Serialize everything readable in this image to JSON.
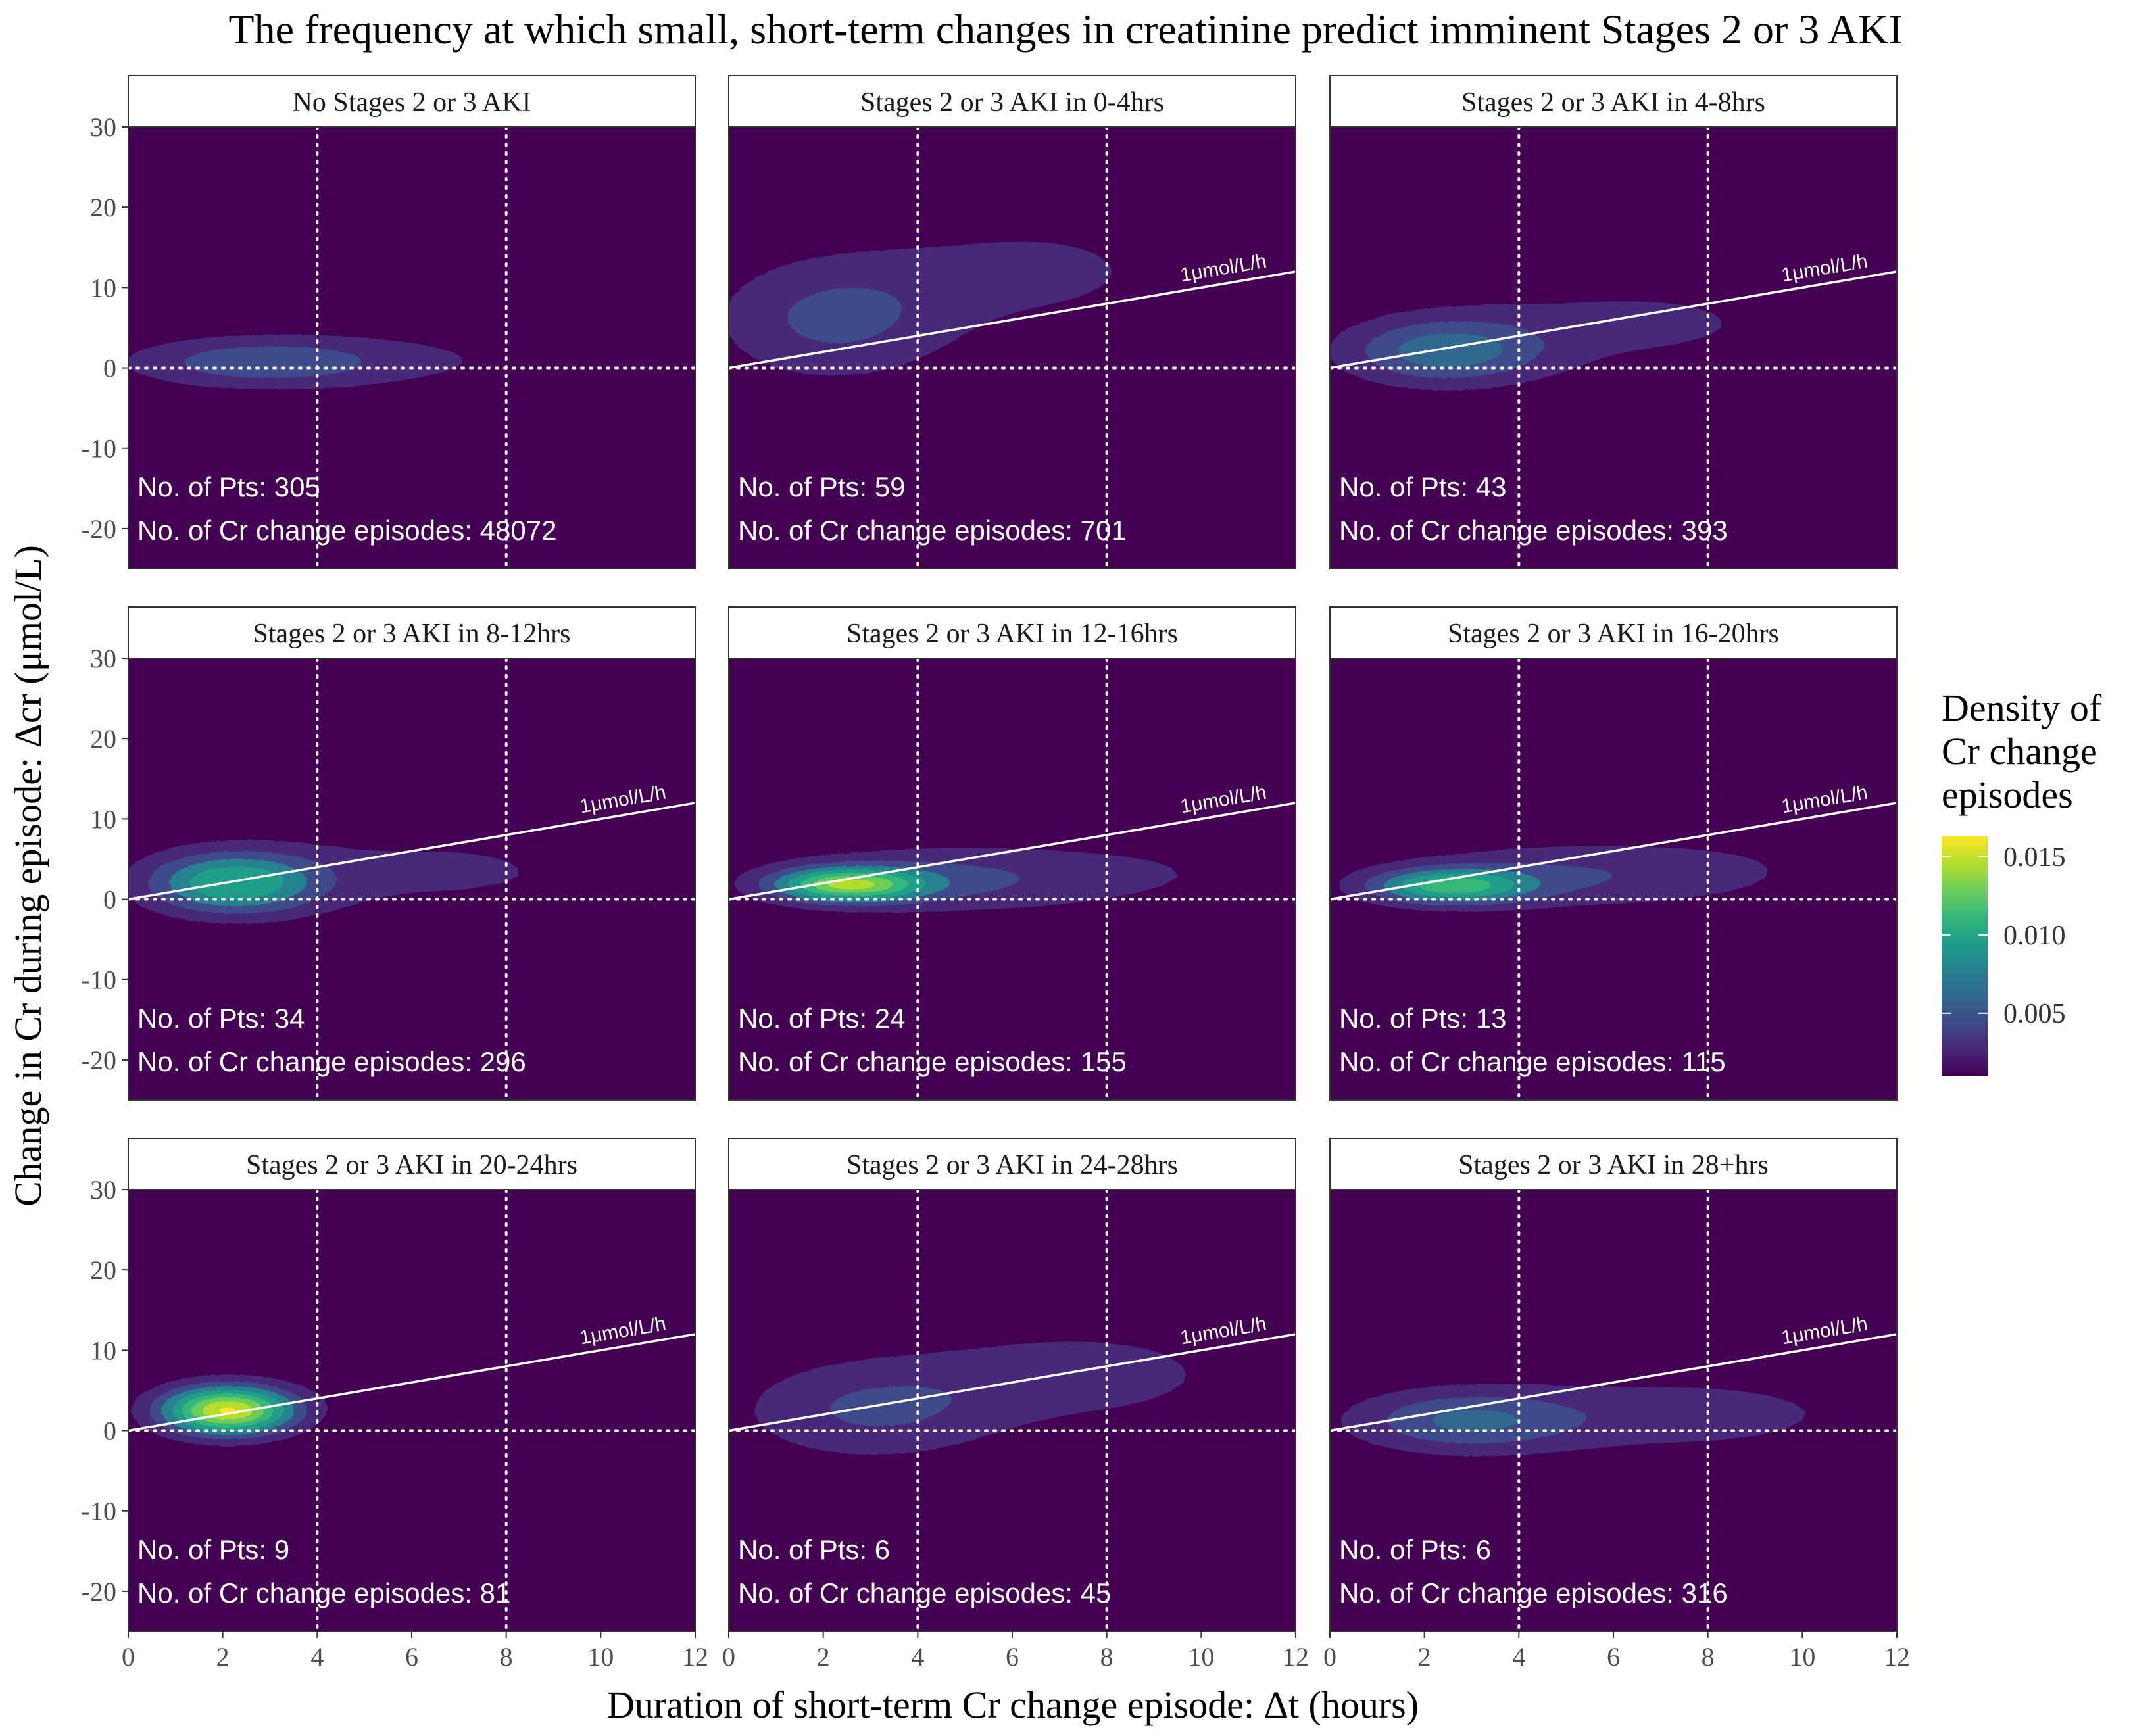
{
  "title": "The frequency at which small, short-term changes in creatinine predict imminent Stages 2 or 3 AKI",
  "colors": {
    "panel_bg": "#440154",
    "viridis": [
      "#440154",
      "#482878",
      "#3E4A89",
      "#31688E",
      "#26828E",
      "#1F9E89",
      "#35B779",
      "#6DCD59",
      "#B4DE2C",
      "#FDE725"
    ],
    "line": "#ffffff"
  },
  "chart_data": {
    "type": "contour",
    "xlabel": "Duration of short-term Cr change episode: Δt (hours)",
    "ylabel": "Change in Cr during episode: Δcr (μmol/L)",
    "xlim": [
      0,
      12
    ],
    "ylim": [
      -25,
      30
    ],
    "x_ticks": [
      0,
      2,
      4,
      6,
      8,
      10,
      12
    ],
    "y_ticks": [
      -20,
      -10,
      0,
      10,
      20,
      30
    ],
    "reference_vlines": [
      4,
      8
    ],
    "reference_hline": 0,
    "slope_line_label": "1μmol/L/h",
    "legend": {
      "title": [
        "Density of",
        "Cr change",
        "episodes"
      ],
      "ticks": [
        0.005,
        0.01,
        0.015
      ],
      "tick_labels": [
        "0.005",
        "0.010",
        "0.015"
      ],
      "range": [
        0.001,
        0.0163
      ]
    },
    "panels": [
      {
        "title": "No Stages 2 or 3 AKI",
        "pts_label": "No. of Pts: 305",
        "episodes_label": "No. of Cr change episodes: 48072",
        "slope_line": false,
        "peak_density": 0.0058,
        "blobs": [
          {
            "mx": 2.8,
            "my": 0.7,
            "sx": 2.0,
            "sy": 2.3,
            "w": 1.0
          },
          {
            "mx": 7.5,
            "my": 1.2,
            "sx": 3.0,
            "sy": 3.6,
            "w": 0.28
          }
        ]
      },
      {
        "title": "Stages 2 or 3 AKI in 0-4hrs",
        "pts_label": "No. of Pts: 59",
        "episodes_label": "No. of Cr change episodes: 701",
        "slope_line": true,
        "peak_density": 0.0048,
        "blobs": [
          {
            "mx": 2.2,
            "my": 6.0,
            "sx": 1.8,
            "sy": 5.5,
            "w": 1.0
          },
          {
            "mx": 6.5,
            "my": 12.0,
            "sx": 2.5,
            "sy": 5.5,
            "w": 0.55
          }
        ]
      },
      {
        "title": "Stages 2 or 3 AKI in 4-8hrs",
        "pts_label": "No. of Pts: 43",
        "episodes_label": "No. of Cr change episodes: 393",
        "slope_line": true,
        "peak_density": 0.0076,
        "blobs": [
          {
            "mx": 2.4,
            "my": 2.0,
            "sx": 1.5,
            "sy": 3.0,
            "w": 1.0
          },
          {
            "mx": 6.5,
            "my": 5.5,
            "sx": 3.0,
            "sy": 4.5,
            "w": 0.35
          }
        ]
      },
      {
        "title": "Stages 2 or 3 AKI in 8-12hrs",
        "pts_label": "No. of Pts: 34",
        "episodes_label": "No. of Cr change episodes: 296",
        "slope_line": true,
        "peak_density": 0.0104,
        "blobs": [
          {
            "mx": 2.2,
            "my": 2.0,
            "sx": 1.3,
            "sy": 2.8,
            "w": 1.0
          },
          {
            "mx": 6.5,
            "my": 3.5,
            "sx": 3.0,
            "sy": 4.0,
            "w": 0.25
          }
        ]
      },
      {
        "title": "Stages 2 or 3 AKI in 12-16hrs",
        "pts_label": "No. of Pts: 24",
        "episodes_label": "No. of Cr change episodes: 155",
        "slope_line": true,
        "peak_density": 0.0152,
        "blobs": [
          {
            "mx": 2.5,
            "my": 1.8,
            "sx": 1.1,
            "sy": 1.5,
            "w": 1.0
          },
          {
            "mx": 4.5,
            "my": 2.5,
            "sx": 2.5,
            "sy": 3.0,
            "w": 0.35
          },
          {
            "mx": 9.5,
            "my": 3.5,
            "sx": 2.5,
            "sy": 4.0,
            "w": 0.12
          }
        ]
      },
      {
        "title": "Stages 2 or 3 AKI in 16-20hrs",
        "pts_label": "No. of Pts: 13",
        "episodes_label": "No. of Cr change episodes: 115",
        "slope_line": true,
        "peak_density": 0.0118,
        "blobs": [
          {
            "mx": 2.5,
            "my": 1.6,
            "sx": 1.2,
            "sy": 1.6,
            "w": 1.0
          },
          {
            "mx": 5.0,
            "my": 3.0,
            "sx": 2.5,
            "sy": 3.0,
            "w": 0.4
          },
          {
            "mx": 9.0,
            "my": 4.0,
            "sx": 2.0,
            "sy": 4.0,
            "w": 0.12
          }
        ]
      },
      {
        "title": "Stages 2 or 3 AKI in 20-24hrs",
        "pts_label": "No. of Pts: 9",
        "episodes_label": "No. of Cr change episodes: 81",
        "slope_line": true,
        "peak_density": 0.0163,
        "blobs": [
          {
            "mx": 2.1,
            "my": 2.5,
            "sx": 1.0,
            "sy": 2.2,
            "w": 1.0
          },
          {
            "mx": 8.0,
            "my": 5.0,
            "sx": 3.0,
            "sy": 3.0,
            "w": 0.06
          }
        ]
      },
      {
        "title": "Stages 2 or 3 AKI in 24-28hrs",
        "pts_label": "No. of Pts: 6",
        "episodes_label": "No. of Cr change episodes: 45",
        "slope_line": true,
        "peak_density": 0.0046,
        "blobs": [
          {
            "mx": 3.0,
            "my": 2.5,
            "sx": 2.0,
            "sy": 4.5,
            "w": 1.0
          },
          {
            "mx": 7.5,
            "my": 7.0,
            "sx": 2.5,
            "sy": 4.5,
            "w": 0.7
          }
        ]
      },
      {
        "title": "Stages 2 or 3 AKI in 28+hrs",
        "pts_label": "No. of Pts: 6",
        "episodes_label": "No. of Cr change episodes: 316",
        "slope_line": true,
        "peak_density": 0.0067,
        "blobs": [
          {
            "mx": 2.8,
            "my": 1.2,
            "sx": 1.7,
            "sy": 2.8,
            "w": 1.0
          },
          {
            "mx": 7.5,
            "my": 2.0,
            "sx": 3.0,
            "sy": 3.8,
            "w": 0.5
          }
        ]
      }
    ]
  }
}
